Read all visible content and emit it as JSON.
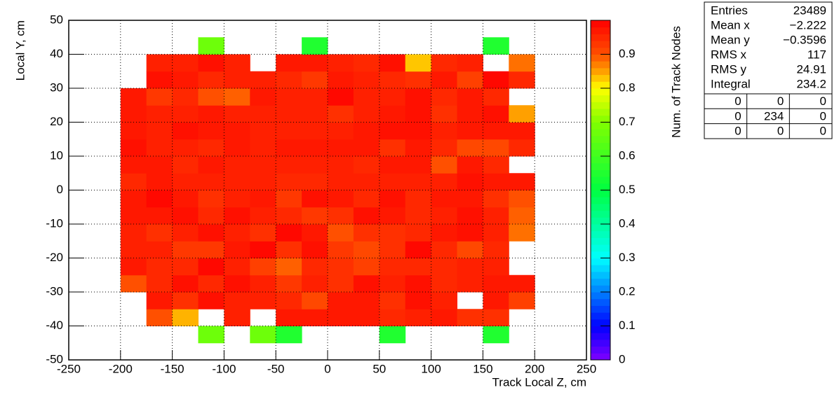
{
  "chart_data": {
    "type": "heatmap",
    "x_label": "Track Local Z, cm",
    "y_label": "Local Y, cm",
    "z_label": "Num. of Track Nodes",
    "xbins": [
      -250,
      -225,
      -200,
      -175,
      -150,
      -125,
      -100,
      -75,
      -50,
      -25,
      0,
      25,
      50,
      75,
      100,
      125,
      150,
      175,
      200,
      225,
      250
    ],
    "ybins": [
      -50,
      -45,
      -40,
      -35,
      -30,
      -25,
      -20,
      -15,
      -10,
      -5,
      0,
      5,
      10,
      15,
      20,
      25,
      30,
      35,
      40,
      45,
      50
    ],
    "values": [
      [
        null,
        null,
        null,
        null,
        null,
        null,
        null,
        null,
        null,
        null,
        null,
        null,
        null,
        null,
        null,
        null,
        null,
        null,
        null,
        null
      ],
      [
        null,
        null,
        null,
        null,
        null,
        0.67,
        null,
        0.67,
        0.55,
        null,
        null,
        null,
        0.55,
        null,
        null,
        null,
        0.55,
        null,
        null,
        null
      ],
      [
        null,
        null,
        null,
        0.9,
        0.84,
        null,
        0.96,
        null,
        0.97,
        0.97,
        0.97,
        0.97,
        0.95,
        0.96,
        0.97,
        0.94,
        0.94,
        null,
        null,
        null
      ],
      [
        null,
        null,
        null,
        0.97,
        0.94,
        0.98,
        0.96,
        0.96,
        0.95,
        0.91,
        0.97,
        0.97,
        0.94,
        0.98,
        0.96,
        null,
        0.97,
        0.92,
        null,
        null
      ],
      [
        null,
        null,
        0.9,
        0.95,
        0.98,
        0.95,
        0.98,
        0.96,
        0.93,
        0.96,
        0.94,
        0.98,
        0.96,
        0.98,
        0.95,
        0.96,
        0.97,
        0.97,
        null,
        null
      ],
      [
        null,
        null,
        0.97,
        0.95,
        0.95,
        0.99,
        0.96,
        0.92,
        0.89,
        0.95,
        0.94,
        0.92,
        0.95,
        0.95,
        0.95,
        0.96,
        0.96,
        null,
        null,
        null
      ],
      [
        null,
        null,
        0.96,
        0.96,
        0.93,
        0.93,
        0.97,
        0.99,
        0.94,
        0.98,
        0.93,
        0.91,
        0.94,
        0.99,
        0.95,
        0.91,
        0.95,
        null,
        null,
        null
      ],
      [
        null,
        null,
        0.96,
        0.94,
        0.96,
        0.98,
        0.96,
        0.94,
        0.99,
        0.97,
        0.9,
        0.94,
        0.94,
        0.95,
        0.97,
        0.98,
        0.96,
        0.88,
        null,
        null
      ],
      [
        null,
        null,
        0.97,
        0.97,
        0.98,
        0.95,
        0.98,
        0.96,
        0.95,
        0.93,
        0.94,
        0.98,
        0.97,
        0.95,
        0.96,
        0.98,
        0.96,
        0.89,
        null,
        null
      ],
      [
        null,
        null,
        0.97,
        0.99,
        0.97,
        0.94,
        0.96,
        0.97,
        0.93,
        0.98,
        0.97,
        0.95,
        0.98,
        0.95,
        0.97,
        0.97,
        0.94,
        0.9,
        null,
        null
      ],
      [
        null,
        null,
        0.95,
        0.97,
        0.96,
        0.96,
        0.96,
        0.96,
        0.95,
        0.95,
        0.96,
        0.96,
        0.96,
        0.96,
        0.96,
        0.98,
        0.97,
        0.97,
        null,
        null
      ],
      [
        null,
        null,
        0.97,
        0.97,
        0.95,
        0.97,
        0.96,
        0.96,
        0.96,
        0.96,
        0.96,
        0.95,
        0.97,
        0.97,
        0.9,
        0.97,
        0.95,
        null,
        null,
        null
      ],
      [
        null,
        null,
        0.98,
        0.96,
        0.96,
        0.95,
        0.97,
        0.96,
        0.97,
        0.97,
        0.97,
        0.97,
        0.94,
        0.97,
        0.95,
        0.91,
        0.91,
        0.95,
        null,
        null
      ],
      [
        null,
        null,
        0.97,
        0.96,
        0.98,
        0.97,
        0.97,
        0.96,
        0.96,
        0.96,
        0.96,
        0.97,
        0.98,
        0.98,
        0.96,
        0.97,
        0.97,
        0.97,
        null,
        null
      ],
      [
        null,
        null,
        0.97,
        0.96,
        0.96,
        0.97,
        0.96,
        0.96,
        0.96,
        0.96,
        0.94,
        0.96,
        0.97,
        0.98,
        0.94,
        0.97,
        0.98,
        0.85,
        null,
        null
      ],
      [
        null,
        null,
        0.97,
        0.93,
        0.95,
        0.9,
        0.89,
        0.97,
        0.96,
        0.96,
        0.99,
        0.96,
        0.96,
        0.98,
        0.95,
        0.97,
        0.95,
        null,
        null,
        null
      ],
      [
        null,
        null,
        null,
        0.98,
        0.97,
        0.95,
        0.96,
        0.96,
        0.95,
        0.93,
        0.97,
        0.96,
        0.95,
        0.94,
        0.97,
        0.92,
        0.99,
        0.95,
        null,
        null
      ],
      [
        null,
        null,
        null,
        0.96,
        0.96,
        0.98,
        0.96,
        null,
        0.97,
        0.97,
        0.96,
        0.95,
        0.98,
        0.83,
        0.95,
        0.96,
        null,
        0.88,
        null,
        null
      ],
      [
        null,
        null,
        null,
        null,
        null,
        0.67,
        null,
        null,
        null,
        0.55,
        null,
        null,
        null,
        null,
        null,
        null,
        0.55,
        null,
        null,
        null
      ],
      [
        null,
        null,
        null,
        null,
        null,
        null,
        null,
        null,
        null,
        null,
        null,
        null,
        null,
        null,
        null,
        null,
        null,
        null,
        null,
        null
      ]
    ],
    "xlim": [
      -250,
      250
    ],
    "ylim": [
      -50,
      50
    ],
    "zlim": [
      0,
      1
    ],
    "xticks": [
      -250,
      -200,
      -150,
      -100,
      -50,
      0,
      50,
      100,
      150,
      200,
      250
    ],
    "yticks": [
      -50,
      -40,
      -30,
      -20,
      -10,
      0,
      10,
      20,
      30,
      40,
      50
    ],
    "zticks": [
      0,
      0.1,
      0.2,
      0.3,
      0.4,
      0.5,
      0.6,
      0.7,
      0.8,
      0.9
    ],
    "grid": true,
    "palette": [
      {
        "value": 0,
        "color": "#8000ff"
      },
      {
        "value": 0.1,
        "color": "#0000ff"
      },
      {
        "value": 0.3,
        "color": "#00ffff"
      },
      {
        "value": 0.5,
        "color": "#00ff40"
      },
      {
        "value": 0.7,
        "color": "#80ff00"
      },
      {
        "value": 0.8,
        "color": "#ffff00"
      },
      {
        "value": 0.85,
        "color": "#ffa000"
      },
      {
        "value": 0.9,
        "color": "#ff5000"
      },
      {
        "value": 1,
        "color": "#ff0000"
      }
    ],
    "stats": {
      "rows": [
        [
          "Entries",
          23489
        ],
        [
          "Mean x",
          "−2.222"
        ],
        [
          "Mean y",
          "−0.3596"
        ],
        [
          "RMS x",
          117
        ],
        [
          "RMS y",
          24.91
        ],
        [
          "Integral",
          234.2
        ]
      ],
      "grid": [
        [
          0,
          0,
          0
        ],
        [
          0,
          234,
          0
        ],
        [
          0,
          0,
          0
        ]
      ]
    }
  }
}
